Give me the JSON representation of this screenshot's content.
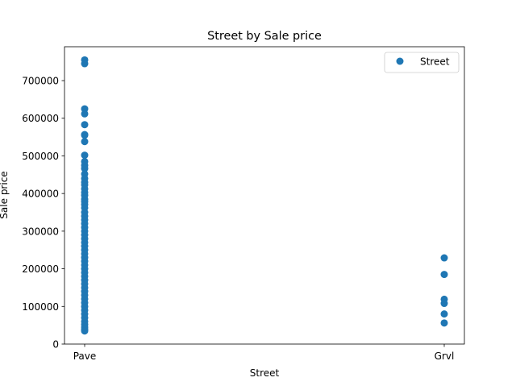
{
  "chart_data": {
    "type": "scatter",
    "title": "Street by Sale price",
    "xlabel": "Street",
    "ylabel": "Sale price",
    "categories": [
      "Pave",
      "Grvl"
    ],
    "ylim": [
      0,
      790000
    ],
    "yticks": [
      0,
      100000,
      200000,
      300000,
      400000,
      500000,
      600000,
      700000
    ],
    "grid": false,
    "legend_position": "top-right",
    "series": [
      {
        "name": "Street",
        "color": "#1f77b4",
        "points": [
          {
            "x": "Pave",
            "y": 755000
          },
          {
            "x": "Pave",
            "y": 745000
          },
          {
            "x": "Pave",
            "y": 625000
          },
          {
            "x": "Pave",
            "y": 611657
          },
          {
            "x": "Pave",
            "y": 582933
          },
          {
            "x": "Pave",
            "y": 556581
          },
          {
            "x": "Pave",
            "y": 555000
          },
          {
            "x": "Pave",
            "y": 538000
          },
          {
            "x": "Pave",
            "y": 501837
          },
          {
            "x": "Pave",
            "y": 485000
          },
          {
            "x": "Pave",
            "y": 475000
          },
          {
            "x": "Pave",
            "y": 466500
          },
          {
            "x": "Pave",
            "y": 451950
          },
          {
            "x": "Pave",
            "y": 440000
          },
          {
            "x": "Pave",
            "y": 430000
          },
          {
            "x": "Pave",
            "y": 423000
          },
          {
            "x": "Pave",
            "y": 412500
          },
          {
            "x": "Pave",
            "y": 402861
          },
          {
            "x": "Pave",
            "y": 395000
          },
          {
            "x": "Pave",
            "y": 385000
          },
          {
            "x": "Pave",
            "y": 378500
          },
          {
            "x": "Pave",
            "y": 370878
          },
          {
            "x": "Pave",
            "y": 361919
          },
          {
            "x": "Pave",
            "y": 350000
          },
          {
            "x": "Pave",
            "y": 340000
          },
          {
            "x": "Pave",
            "y": 330000
          },
          {
            "x": "Pave",
            "y": 320000
          },
          {
            "x": "Pave",
            "y": 310000
          },
          {
            "x": "Pave",
            "y": 300000
          },
          {
            "x": "Pave",
            "y": 290000
          },
          {
            "x": "Pave",
            "y": 280000
          },
          {
            "x": "Pave",
            "y": 270000
          },
          {
            "x": "Pave",
            "y": 260000
          },
          {
            "x": "Pave",
            "y": 250000
          },
          {
            "x": "Pave",
            "y": 240000
          },
          {
            "x": "Pave",
            "y": 230000
          },
          {
            "x": "Pave",
            "y": 220000
          },
          {
            "x": "Pave",
            "y": 210000
          },
          {
            "x": "Pave",
            "y": 200000
          },
          {
            "x": "Pave",
            "y": 190000
          },
          {
            "x": "Pave",
            "y": 180000
          },
          {
            "x": "Pave",
            "y": 170000
          },
          {
            "x": "Pave",
            "y": 160000
          },
          {
            "x": "Pave",
            "y": 150000
          },
          {
            "x": "Pave",
            "y": 140000
          },
          {
            "x": "Pave",
            "y": 130000
          },
          {
            "x": "Pave",
            "y": 120000
          },
          {
            "x": "Pave",
            "y": 110000
          },
          {
            "x": "Pave",
            "y": 100000
          },
          {
            "x": "Pave",
            "y": 90000
          },
          {
            "x": "Pave",
            "y": 80000
          },
          {
            "x": "Pave",
            "y": 70000
          },
          {
            "x": "Pave",
            "y": 60000
          },
          {
            "x": "Pave",
            "y": 52000
          },
          {
            "x": "Pave",
            "y": 45000
          },
          {
            "x": "Pave",
            "y": 39300
          },
          {
            "x": "Pave",
            "y": 34900
          },
          {
            "x": "Grvl",
            "y": 228950
          },
          {
            "x": "Grvl",
            "y": 185000
          },
          {
            "x": "Grvl",
            "y": 119000
          },
          {
            "x": "Grvl",
            "y": 108000
          },
          {
            "x": "Grvl",
            "y": 80000
          },
          {
            "x": "Grvl",
            "y": 55993
          }
        ]
      }
    ]
  }
}
